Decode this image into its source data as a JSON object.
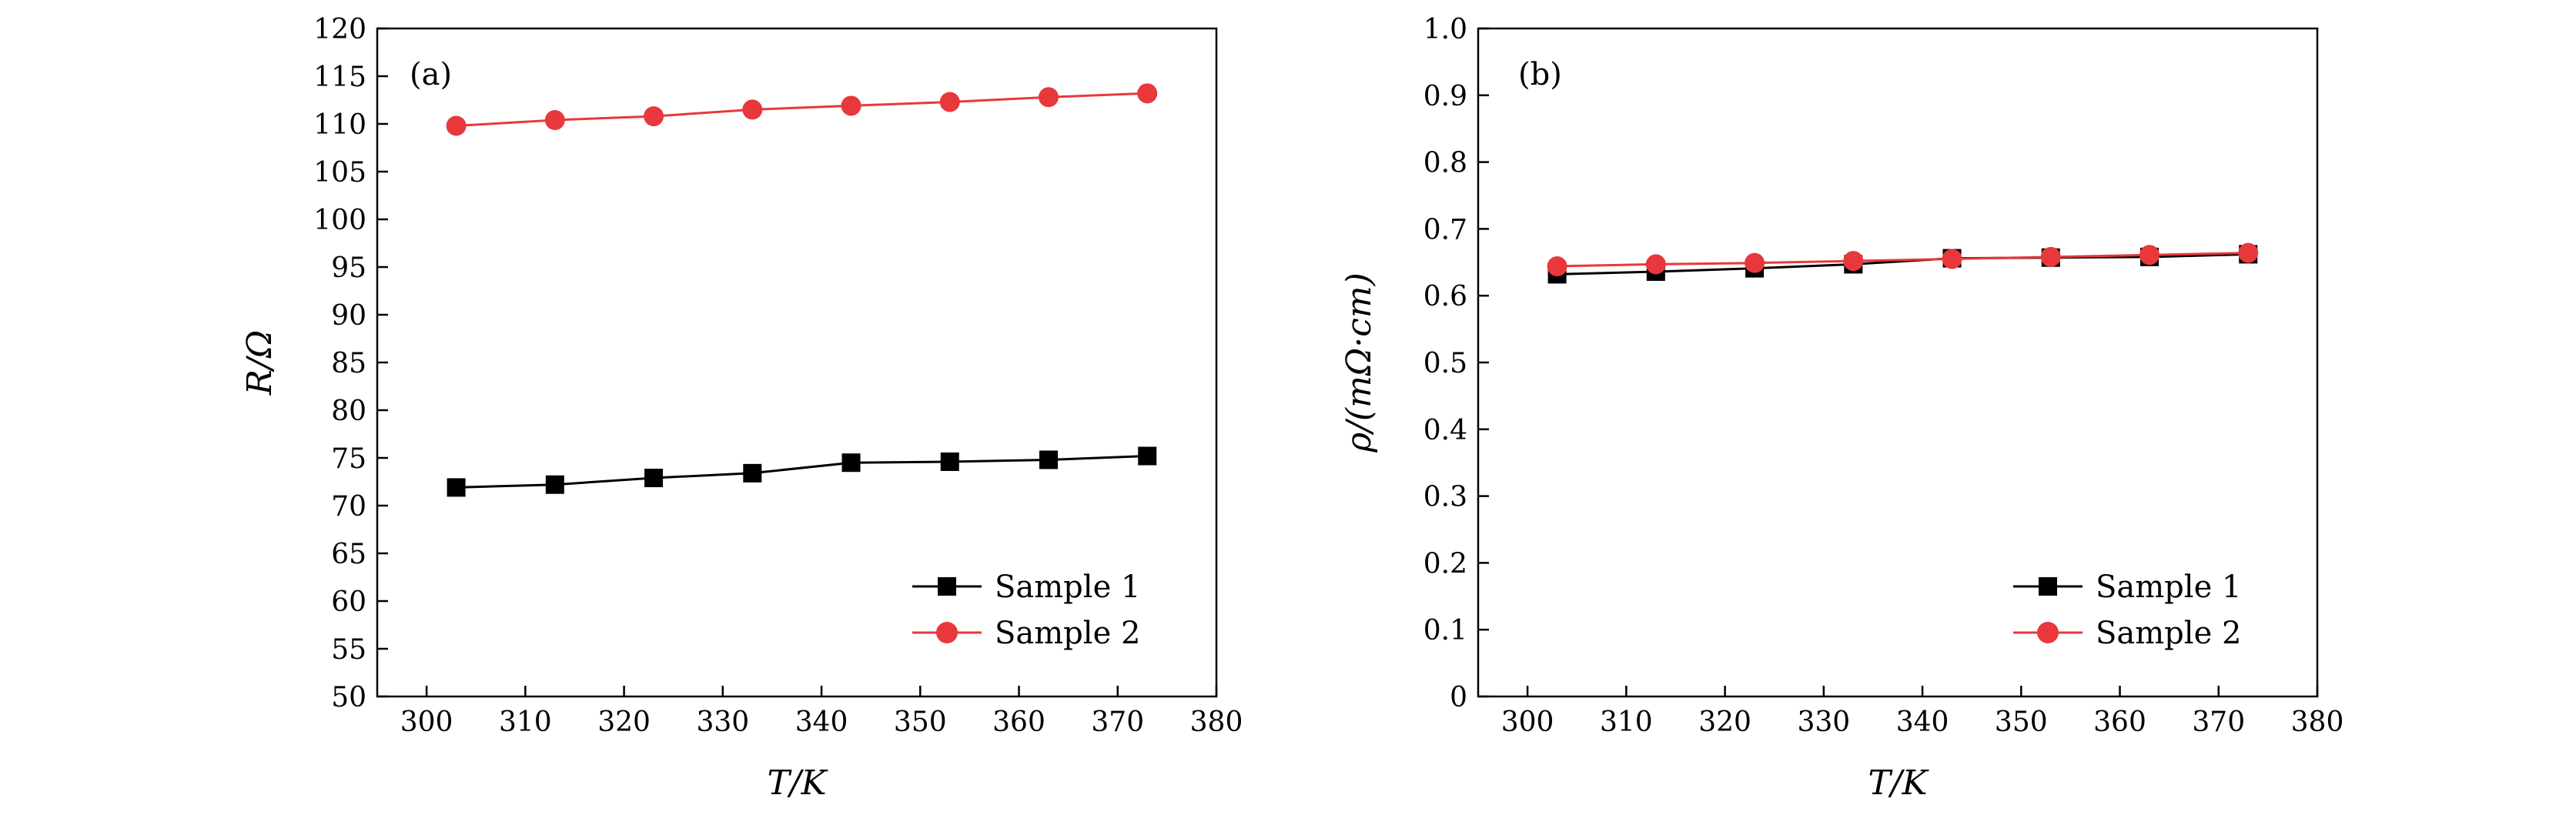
{
  "chart_data": [
    {
      "type": "line",
      "panel_label": "(a)",
      "xlabel": "T/K",
      "ylabel": "R/Ω",
      "x": [
        303,
        313,
        323,
        333,
        343,
        353,
        363,
        373
      ],
      "xlim": [
        295,
        380
      ],
      "ylim": [
        50,
        120
      ],
      "xticks": [
        300,
        310,
        320,
        330,
        340,
        350,
        360,
        370,
        380
      ],
      "yticks": [
        50,
        55,
        60,
        65,
        70,
        75,
        80,
        85,
        90,
        95,
        100,
        105,
        110,
        115,
        120
      ],
      "grid": false,
      "legend_position": "bottom-right",
      "series": [
        {
          "name": "Sample 1",
          "marker": "square",
          "color": "#000000",
          "values": [
            71.9,
            72.2,
            72.9,
            73.4,
            74.5,
            74.6,
            74.8,
            75.2
          ]
        },
        {
          "name": "Sample 2",
          "marker": "circle",
          "color": "#e8383b",
          "values": [
            109.8,
            110.4,
            110.8,
            111.5,
            111.9,
            112.3,
            112.8,
            113.2
          ]
        }
      ]
    },
    {
      "type": "line",
      "panel_label": "(b)",
      "xlabel": "T/K",
      "ylabel": "ρ/(mΩ·cm)",
      "x": [
        303,
        313,
        323,
        333,
        343,
        353,
        363,
        373
      ],
      "xlim": [
        295,
        380
      ],
      "ylim": [
        0,
        1.0
      ],
      "xticks": [
        300,
        310,
        320,
        330,
        340,
        350,
        360,
        370,
        380
      ],
      "yticks": [
        0,
        0.1,
        0.2,
        0.3,
        0.4,
        0.5,
        0.6,
        0.7,
        0.8,
        0.9,
        1.0
      ],
      "ytick_labels": [
        "0",
        "0.1",
        "0.2",
        "0.3",
        "0.4",
        "0.5",
        "0.6",
        "0.7",
        "0.8",
        "0.9",
        "1.0"
      ],
      "grid": false,
      "legend_position": "bottom-right",
      "series": [
        {
          "name": "Sample 1",
          "marker": "square",
          "color": "#000000",
          "values": [
            0.632,
            0.636,
            0.641,
            0.647,
            0.656,
            0.657,
            0.658,
            0.662
          ]
        },
        {
          "name": "Sample 2",
          "marker": "circle",
          "color": "#e8383b",
          "values": [
            0.644,
            0.647,
            0.649,
            0.652,
            0.655,
            0.658,
            0.661,
            0.664
          ]
        }
      ]
    }
  ]
}
